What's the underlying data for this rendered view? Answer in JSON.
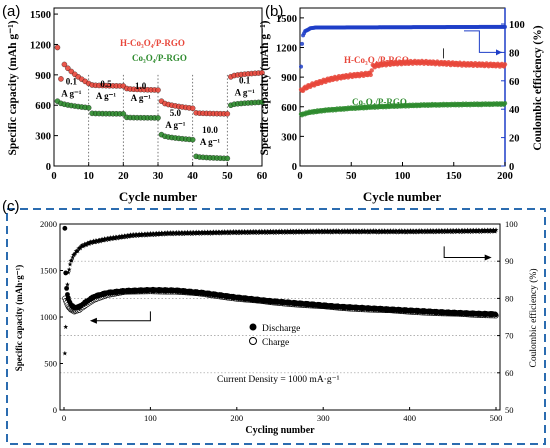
{
  "chart_data": [
    {
      "panel": "(a)",
      "type": "scatter",
      "xlabel": "Cycle number",
      "ylabel": "Specific capacity (mAh g⁻¹)",
      "xlim": [
        0,
        60
      ],
      "ylim": [
        0,
        1560
      ],
      "xticks": [
        0,
        10,
        20,
        30,
        40,
        50,
        60
      ],
      "yticks": [
        0,
        300,
        600,
        900,
        1200,
        1500
      ],
      "series": [
        {
          "name": "H-Co₃O₄/P-RGO",
          "color": "#e8463a",
          "segments": [
            {
              "x": [
                1,
                10
              ],
              "y": [
                1170,
                815
              ]
            },
            {
              "x": [
                11,
                20
              ],
              "y": [
                800,
                790
              ]
            },
            {
              "x": [
                21,
                30
              ],
              "y": [
                765,
                750
              ]
            },
            {
              "x": [
                31,
                40
              ],
              "y": [
                640,
                570
              ]
            },
            {
              "x": [
                41,
                50
              ],
              "y": [
                525,
                515
              ]
            },
            {
              "x": [
                51,
                60
              ],
              "y": [
                880,
                920
              ]
            }
          ]
        },
        {
          "name": "Co₃O₄/P-RGO",
          "color": "#2e8b2e",
          "segments": [
            {
              "x": [
                1,
                10
              ],
              "y": [
                640,
                575
              ]
            },
            {
              "x": [
                11,
                20
              ],
              "y": [
                520,
                515
              ]
            },
            {
              "x": [
                21,
                30
              ],
              "y": [
                480,
                475
              ]
            },
            {
              "x": [
                31,
                40
              ],
              "y": [
                310,
                260
              ]
            },
            {
              "x": [
                41,
                50
              ],
              "y": [
                95,
                75
              ]
            },
            {
              "x": [
                51,
                60
              ],
              "y": [
                600,
                630
              ]
            }
          ]
        }
      ],
      "annotations": [
        {
          "text": "0.1",
          "unit": "A g⁻¹"
        },
        {
          "text": "0.5",
          "unit": "A g⁻¹"
        },
        {
          "text": "1.0",
          "unit": "A g⁻¹"
        },
        {
          "text": "5.0",
          "unit": "A g⁻¹"
        },
        {
          "text": "10.0",
          "unit": "A g⁻¹"
        },
        {
          "text": "0.1",
          "unit": "A g⁻¹"
        }
      ]
    },
    {
      "panel": "(b)",
      "type": "scatter",
      "xlabel": "Cycle number",
      "ylabel": "Specific capacity (mAh g⁻¹)",
      "y2label": "Coulombic efficiency (%)",
      "xlim": [
        0,
        200
      ],
      "ylim": [
        0,
        1600
      ],
      "y2lim": [
        0,
        100
      ],
      "xticks": [
        0,
        50,
        100,
        150,
        200
      ],
      "yticks": [
        0,
        300,
        600,
        900,
        1200,
        1500
      ],
      "y2ticks": [
        0,
        20,
        40,
        60,
        80,
        100
      ],
      "series": [
        {
          "name": "H-Co₃O₄/P-RGO",
          "color": "#e8463a",
          "x": [
            1,
            5,
            10,
            20,
            30,
            40,
            50,
            60,
            69,
            71,
            80,
            90,
            100,
            110,
            120,
            130,
            140,
            150,
            160,
            170,
            180,
            190,
            200
          ],
          "y": [
            760,
            790,
            815,
            850,
            880,
            900,
            915,
            925,
            935,
            1010,
            1030,
            1040,
            1045,
            1050,
            1050,
            1045,
            1040,
            1035,
            1030,
            1028,
            1025,
            1022,
            1020
          ]
        },
        {
          "name": "Co₃O₄/P-RGO",
          "color": "#2e8b2e",
          "x": [
            1,
            10,
            25,
            50,
            75,
            100,
            125,
            150,
            175,
            200
          ],
          "y": [
            520,
            545,
            565,
            585,
            600,
            610,
            618,
            622,
            625,
            628
          ]
        },
        {
          "name": "Coulombic efficiency",
          "axis": "right",
          "color": "#1e3ec8",
          "x": [
            1,
            2,
            3,
            5,
            8,
            10,
            15,
            200
          ],
          "y": [
            70,
            86,
            92,
            95,
            96,
            97,
            97.5,
            98
          ]
        }
      ]
    },
    {
      "panel": "(c)",
      "type": "scatter",
      "xlabel": "Cycling number",
      "ylabel": "Specific capacity (mAh·g⁻¹)",
      "y2label": "Coulombic efficiency (%)",
      "title": "Current Density = 1000 mA·g⁻¹",
      "xlim": [
        0,
        500
      ],
      "ylim": [
        0,
        2000
      ],
      "y2lim": [
        50,
        100
      ],
      "xticks": [
        0,
        100,
        200,
        300,
        400,
        500
      ],
      "yticks": [
        0,
        500,
        1000,
        1500,
        2000
      ],
      "y2ticks": [
        50,
        60,
        70,
        80,
        90,
        100
      ],
      "grid": true,
      "series": [
        {
          "name": "Discharge",
          "color": "#000000",
          "x": [
            1,
            2,
            3,
            5,
            8,
            12,
            18,
            25,
            35,
            50,
            70,
            100,
            130,
            160,
            200,
            240,
            280,
            320,
            360,
            400,
            440,
            480,
            500
          ],
          "y": [
            1950,
            1480,
            1300,
            1200,
            1130,
            1100,
            1110,
            1160,
            1220,
            1260,
            1280,
            1290,
            1285,
            1260,
            1210,
            1170,
            1140,
            1110,
            1090,
            1070,
            1050,
            1035,
            1030
          ]
        },
        {
          "name": "Charge",
          "color": "#000000",
          "x": [
            1,
            3,
            5,
            8,
            12,
            18,
            25,
            35,
            50,
            70,
            100,
            130,
            160,
            200,
            240,
            280,
            320,
            360,
            400,
            440,
            480,
            500
          ],
          "y": [
            1200,
            1150,
            1110,
            1080,
            1060,
            1080,
            1130,
            1190,
            1240,
            1270,
            1280,
            1275,
            1250,
            1200,
            1160,
            1130,
            1100,
            1080,
            1060,
            1040,
            1025,
            1020
          ]
        },
        {
          "name": "Coulombic efficiency",
          "axis": "right",
          "color": "#000000",
          "x": [
            1,
            3,
            5,
            8,
            12,
            20,
            30,
            50,
            80,
            120,
            200,
            300,
            400,
            500
          ],
          "y": [
            65,
            80,
            87,
            90,
            92,
            94,
            95,
            96,
            97,
            97.5,
            97.8,
            98,
            98,
            98.2
          ]
        }
      ]
    }
  ]
}
